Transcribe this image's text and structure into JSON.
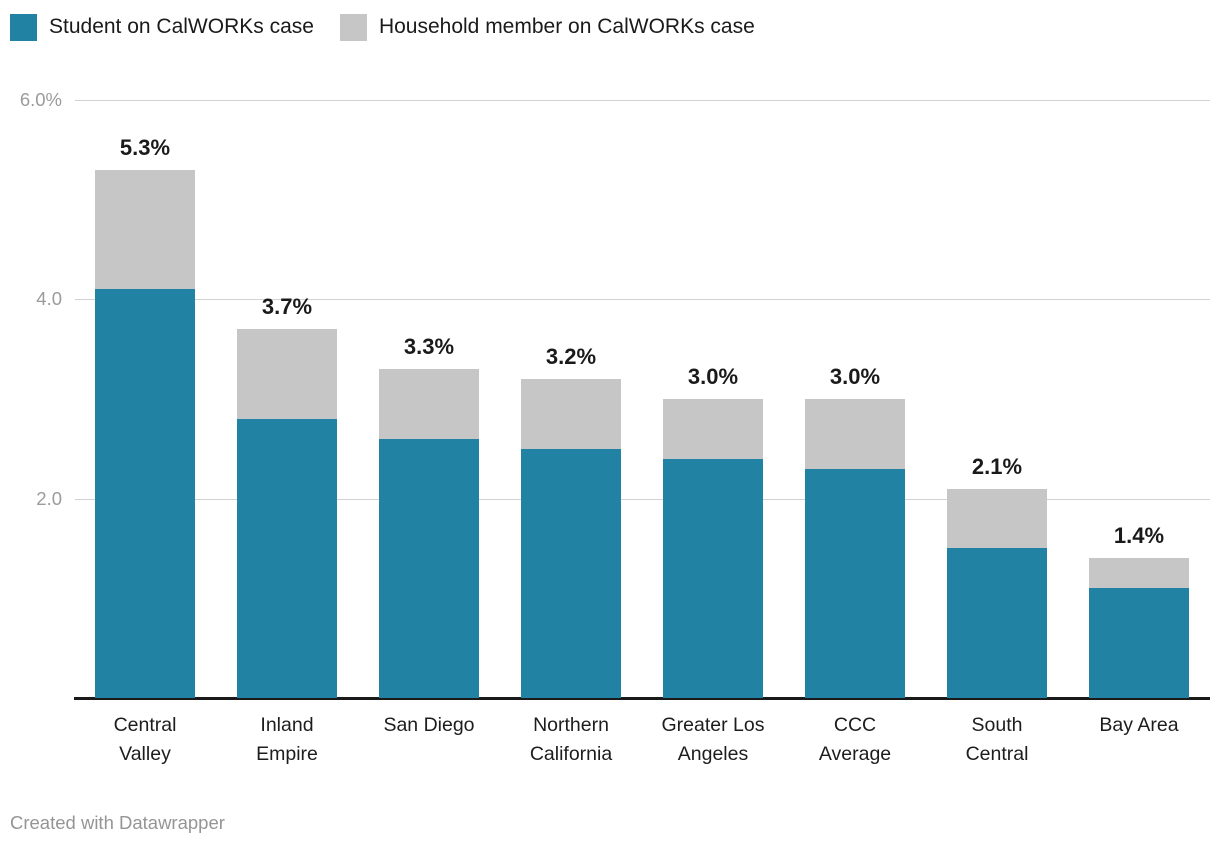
{
  "legend": {
    "items": [
      {
        "label": "Student on CalWORKs case",
        "color": "#2182a3"
      },
      {
        "label": "Household member on CalWORKs case",
        "color": "#c6c6c6"
      }
    ]
  },
  "footer": {
    "attribution": "Created with Datawrapper"
  },
  "chart_data": {
    "type": "bar",
    "stacked": true,
    "title": "",
    "xlabel": "",
    "ylabel": "",
    "ylim": [
      0,
      6
    ],
    "grid": true,
    "legend_position": "top-left",
    "unit": "%",
    "categories": [
      "Central Valley",
      "Inland Empire",
      "San Diego",
      "Northern California",
      "Greater Los Angeles",
      "CCC Average",
      "South Central",
      "Bay Area"
    ],
    "category_lines": [
      [
        "Central",
        "Valley"
      ],
      [
        "Inland",
        "Empire"
      ],
      [
        "San Diego"
      ],
      [
        "Northern",
        "California"
      ],
      [
        "Greater Los",
        "Angeles"
      ],
      [
        "CCC",
        "Average"
      ],
      [
        "South",
        "Central"
      ],
      [
        "Bay Area"
      ]
    ],
    "series": [
      {
        "name": "Student on CalWORKs case",
        "color": "#2182a3",
        "values": [
          4.1,
          2.8,
          2.6,
          2.5,
          2.4,
          2.3,
          1.5,
          1.1
        ]
      },
      {
        "name": "Household member on CalWORKs case",
        "color": "#c6c6c6",
        "values": [
          1.2,
          0.9,
          0.7,
          0.7,
          0.6,
          0.7,
          0.6,
          0.3
        ]
      }
    ],
    "totals": [
      5.3,
      3.7,
      3.3,
      3.2,
      3.0,
      3.0,
      2.1,
      1.4
    ],
    "total_labels": [
      "5.3%",
      "3.7%",
      "3.3%",
      "3.2%",
      "3.0%",
      "3.0%",
      "2.1%",
      "1.4%"
    ],
    "y_axis": {
      "ticks": [
        {
          "value": 6.0,
          "label": "6.0%"
        },
        {
          "value": 4.0,
          "label": "4.0"
        },
        {
          "value": 2.0,
          "label": "2.0"
        }
      ]
    }
  }
}
